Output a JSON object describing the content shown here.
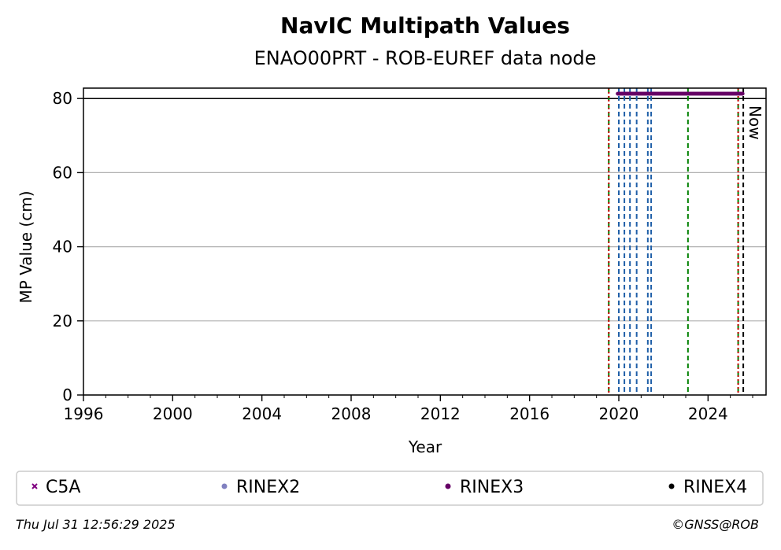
{
  "chart_data": {
    "type": "scatter",
    "title": "NavIC Multipath Values",
    "subtitle": "ENAO00PRT - ROB-EUREF data node",
    "xlabel": "Year",
    "ylabel": "MP Value (cm)",
    "xlim": [
      1996,
      2026.6
    ],
    "ylim": [
      0,
      82.8
    ],
    "xticks": [
      1996,
      2000,
      2004,
      2008,
      2012,
      2016,
      2020,
      2024
    ],
    "yticks": [
      0,
      20,
      40,
      60,
      80
    ],
    "grid": "horizontal",
    "series": [
      {
        "name": "C5A",
        "color": "#800080",
        "marker": "x",
        "x": [],
        "values": []
      },
      {
        "name": "RINEX2",
        "color": "#8080c0",
        "marker": "dot",
        "x": [],
        "values": []
      },
      {
        "name": "RINEX3",
        "color": "#660066",
        "marker": "dot",
        "x_range": [
          2019.95,
          2025.55
        ],
        "y_value": 81.3
      },
      {
        "name": "RINEX4",
        "color": "#000000",
        "marker": "dot",
        "x": [],
        "values": []
      }
    ],
    "reference_line_y": 80,
    "vlines": [
      {
        "x": 2019.55,
        "color": "#008000",
        "style": "dashed"
      },
      {
        "x": 2019.55,
        "color": "#cc0000",
        "style": "dotted"
      },
      {
        "x": 2020.0,
        "color": "#1f5fa8",
        "style": "dashed"
      },
      {
        "x": 2020.25,
        "color": "#1f5fa8",
        "style": "dashed"
      },
      {
        "x": 2020.5,
        "color": "#1f5fa8",
        "style": "dashed"
      },
      {
        "x": 2020.8,
        "color": "#1f5fa8",
        "style": "dashed"
      },
      {
        "x": 2021.3,
        "color": "#1f5fa8",
        "style": "dashed"
      },
      {
        "x": 2021.45,
        "color": "#1f5fa8",
        "style": "dashed"
      },
      {
        "x": 2023.1,
        "color": "#008000",
        "style": "dashed"
      },
      {
        "x": 2025.35,
        "color": "#008000",
        "style": "dashed"
      },
      {
        "x": 2025.35,
        "color": "#cc0000",
        "style": "dotted"
      },
      {
        "x": 2025.58,
        "color": "#000000",
        "style": "dashed"
      }
    ],
    "now_label": "Now",
    "legend_position": "bottom"
  },
  "footer": {
    "timestamp": "Thu Jul 31 12:56:29 2025",
    "credit": "©GNSS@ROB"
  }
}
